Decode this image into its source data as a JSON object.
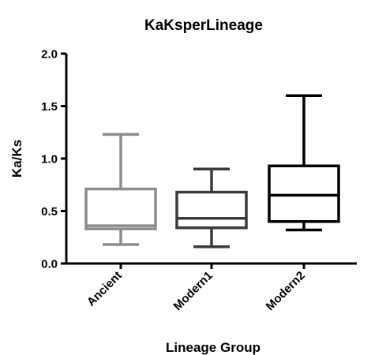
{
  "chart_data": {
    "type": "box",
    "title": "KaKsperLineage",
    "xlabel": "Lineage Group",
    "ylabel": "Ka/Ks",
    "ylim": [
      0,
      2.0
    ],
    "yticks": [
      "0.0",
      "0.5",
      "1.0",
      "1.5",
      "2.0"
    ],
    "grid": false,
    "categories": [
      "Ancient",
      "Modern1",
      "Modern2"
    ],
    "series": [
      {
        "category": "Ancient",
        "color": "#8c8c8c",
        "min": 0.18,
        "q1": 0.33,
        "median": 0.36,
        "q3": 0.71,
        "max": 1.23
      },
      {
        "category": "Modern1",
        "color": "#3a3a3a",
        "min": 0.16,
        "q1": 0.34,
        "median": 0.43,
        "q3": 0.68,
        "max": 0.9
      },
      {
        "category": "Modern2",
        "color": "#000000",
        "min": 0.32,
        "q1": 0.4,
        "median": 0.65,
        "q3": 0.93,
        "max": 1.6
      }
    ]
  }
}
